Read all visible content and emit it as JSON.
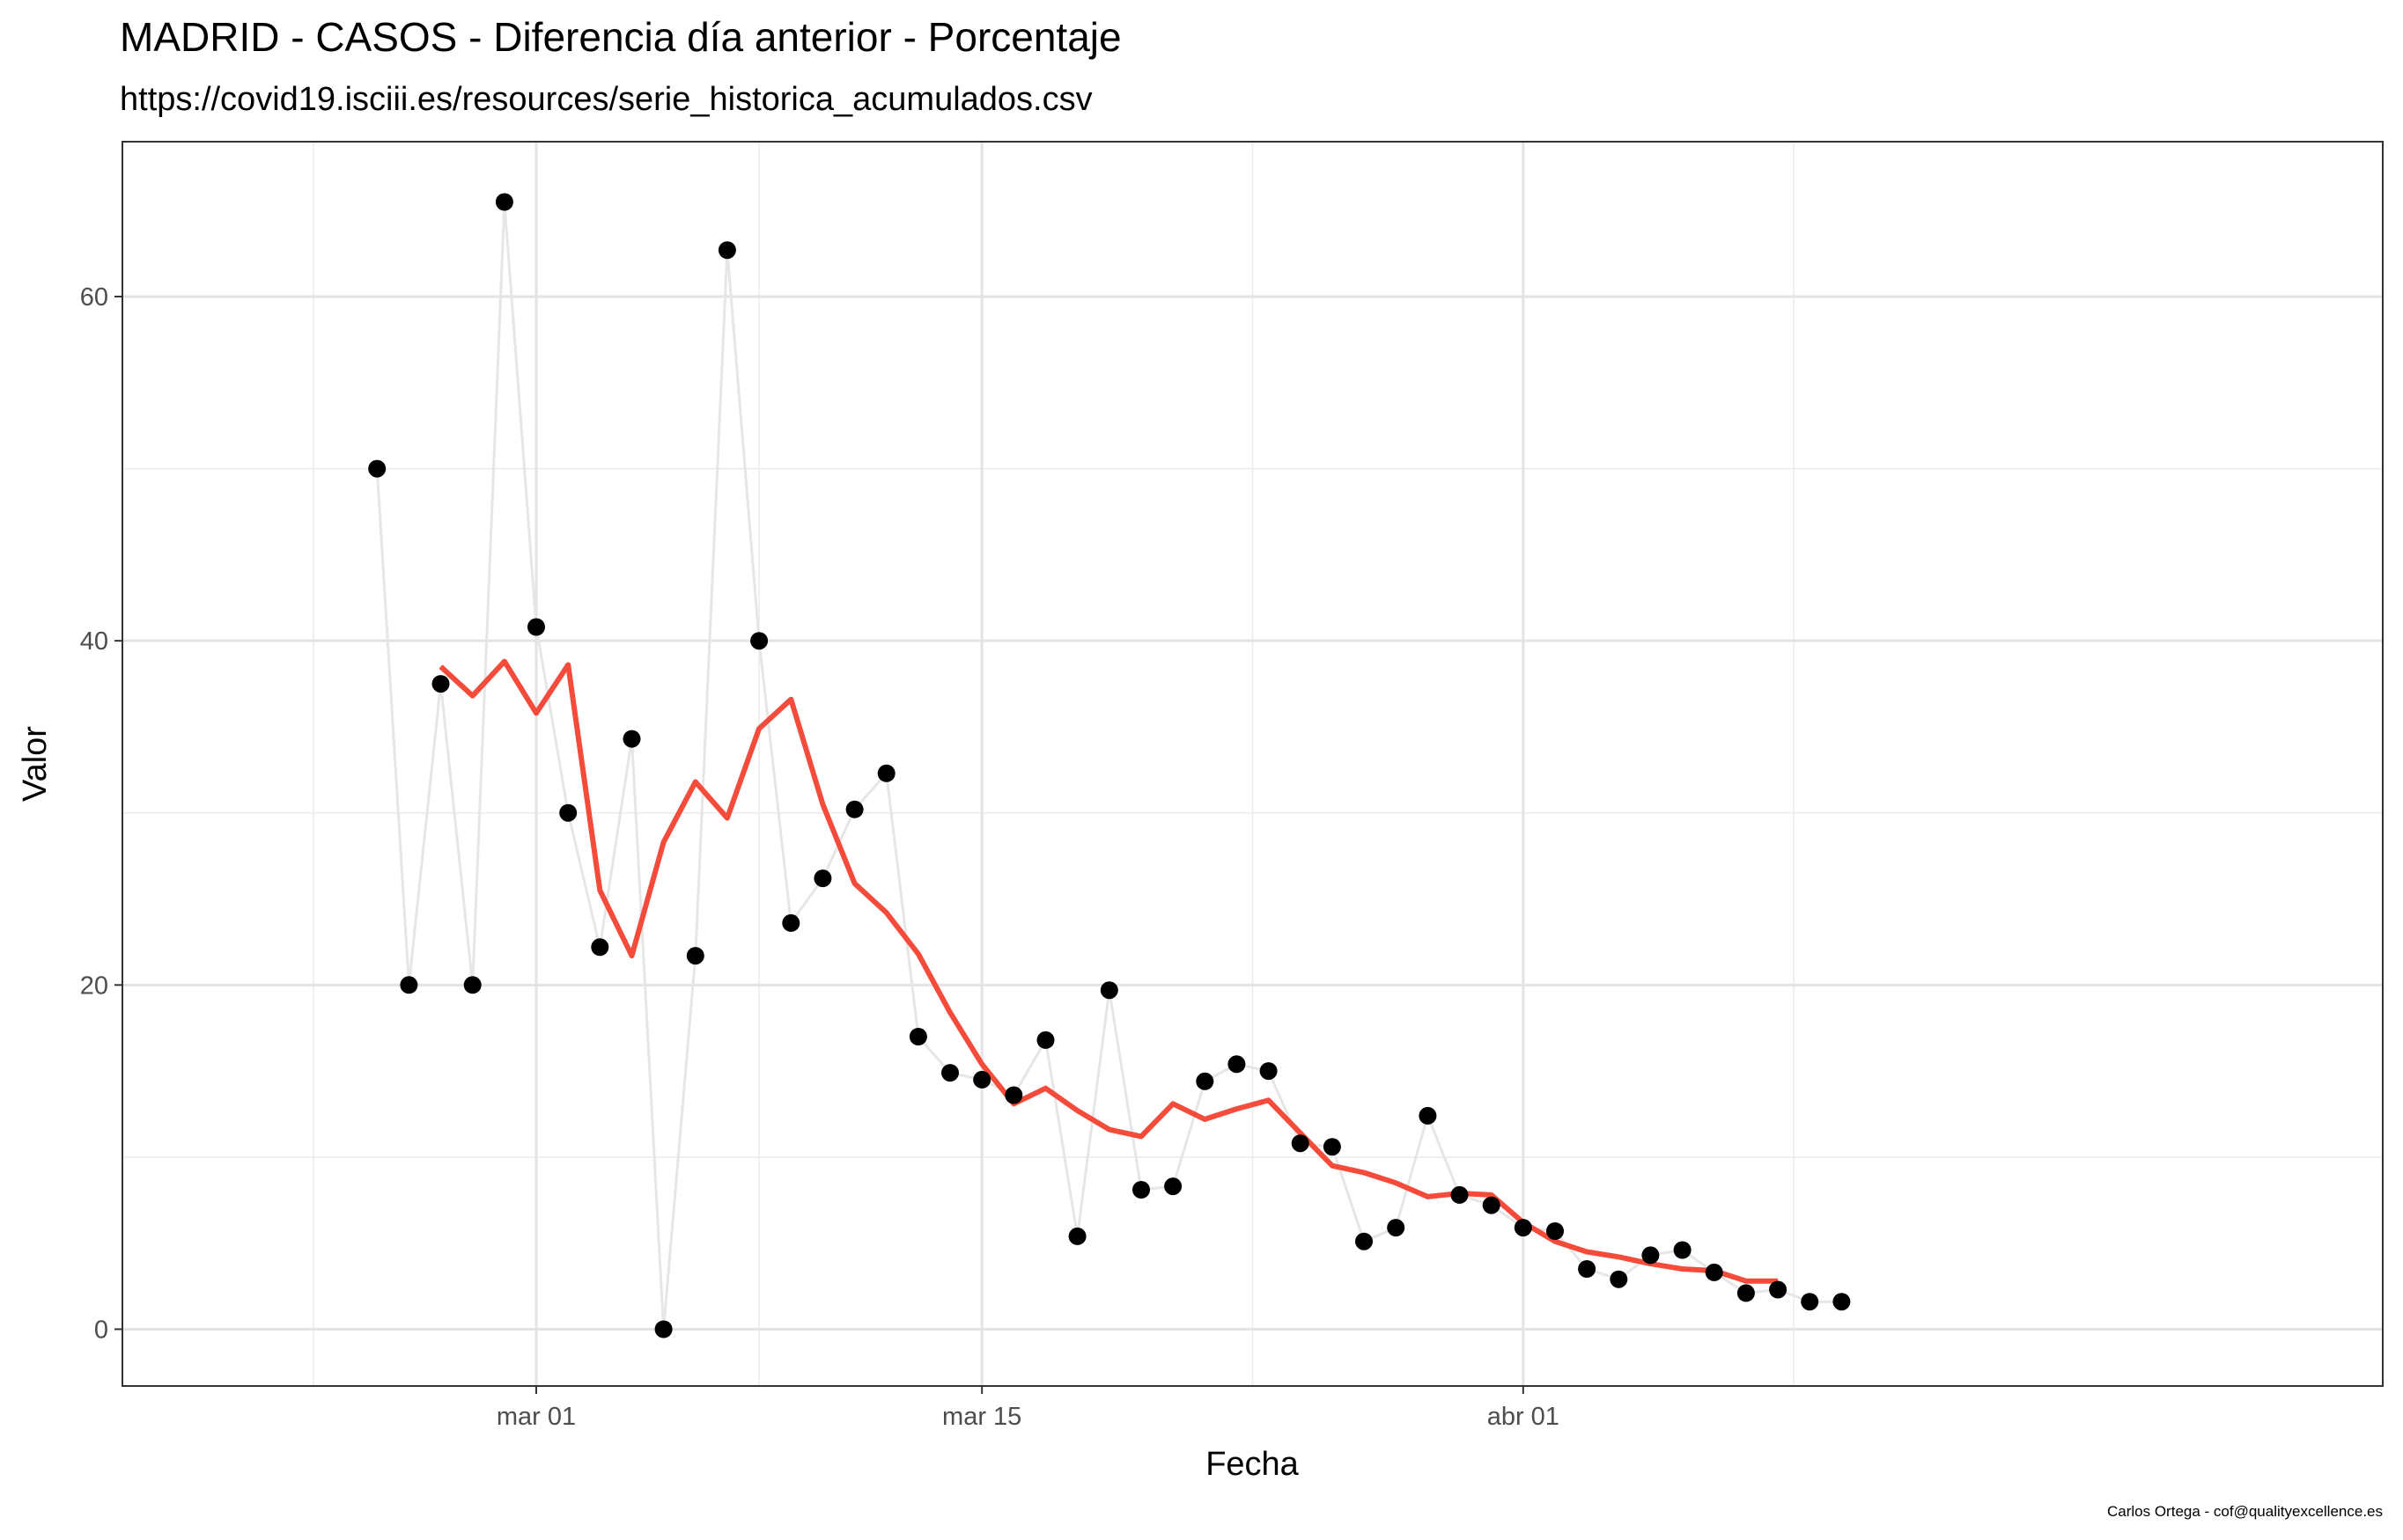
{
  "chart_data": {
    "type": "line",
    "title": "MADRID - CASOS - Diferencia día anterior - Porcentaje",
    "subtitle": "https://covid19.isciii.es/resources/serie_historica_acumulados.csv",
    "xlabel": "Fecha",
    "ylabel": "Valor",
    "caption": "Carlos Ortega - cof@qualityexcellence.es",
    "x_ticks": [
      {
        "label": "mar 01",
        "date": "2020-03-01"
      },
      {
        "label": "mar 15",
        "date": "2020-03-15"
      },
      {
        "label": "abr 01",
        "date": "2020-04-01"
      }
    ],
    "y_ticks": [
      0,
      20,
      40,
      60
    ],
    "xlim": [
      "2020-02-17",
      "2020-04-28"
    ],
    "ylim": [
      -3.3,
      69
    ],
    "grid": true,
    "colors": {
      "points": "#000000",
      "connector": "#e6e6e6",
      "smooth": "#f44b3a"
    },
    "series": [
      {
        "kind": "points",
        "x": [
          "2020-02-25",
          "2020-02-26",
          "2020-02-27",
          "2020-02-28",
          "2020-02-29",
          "2020-03-01",
          "2020-03-02",
          "2020-03-03",
          "2020-03-04",
          "2020-03-05",
          "2020-03-06",
          "2020-03-07",
          "2020-03-08",
          "2020-03-09",
          "2020-03-10",
          "2020-03-11",
          "2020-03-12",
          "2020-03-13",
          "2020-03-14",
          "2020-03-15",
          "2020-03-16",
          "2020-03-17",
          "2020-03-18",
          "2020-03-19",
          "2020-03-20",
          "2020-03-21",
          "2020-03-22",
          "2020-03-23",
          "2020-03-24",
          "2020-03-25",
          "2020-03-26",
          "2020-03-27",
          "2020-03-28",
          "2020-03-29",
          "2020-03-30",
          "2020-03-31",
          "2020-04-01",
          "2020-04-02",
          "2020-04-03",
          "2020-04-04",
          "2020-04-05",
          "2020-04-06",
          "2020-04-07",
          "2020-04-08",
          "2020-04-09",
          "2020-04-10",
          "2020-04-11"
        ],
        "y": [
          50,
          20,
          37.5,
          20,
          65.5,
          40.8,
          30,
          22.2,
          34.3,
          0,
          21.7,
          62.7,
          40,
          23.6,
          26.2,
          30.2,
          32.3,
          17,
          14.9,
          14.5,
          13.6,
          16.8,
          5.4,
          19.7,
          8.1,
          8.3,
          14.4,
          15.4,
          15,
          10.8,
          10.6,
          5.1,
          5.9,
          12.4,
          7.8,
          7.2,
          5.9,
          5.7,
          3.5,
          2.9,
          4.3,
          4.6,
          3.3,
          2.1,
          2.3,
          1.6,
          1.6
        ]
      },
      {
        "kind": "smooth",
        "x": [
          "2020-02-27",
          "2020-02-28",
          "2020-02-29",
          "2020-03-01",
          "2020-03-02",
          "2020-03-03",
          "2020-03-04",
          "2020-03-05",
          "2020-03-06",
          "2020-03-07",
          "2020-03-08",
          "2020-03-09",
          "2020-03-10",
          "2020-03-11",
          "2020-03-12",
          "2020-03-13",
          "2020-03-14",
          "2020-03-15",
          "2020-03-16",
          "2020-03-17",
          "2020-03-18",
          "2020-03-19",
          "2020-03-20",
          "2020-03-21",
          "2020-03-22",
          "2020-03-23",
          "2020-03-24",
          "2020-03-25",
          "2020-03-26",
          "2020-03-27",
          "2020-03-28",
          "2020-03-29",
          "2020-03-30",
          "2020-03-31",
          "2020-04-01",
          "2020-04-02",
          "2020-04-03",
          "2020-04-04",
          "2020-04-05",
          "2020-04-06",
          "2020-04-07",
          "2020-04-08",
          "2020-04-09"
        ],
        "y": [
          38.5,
          36.8,
          38.8,
          35.8,
          38.6,
          25.5,
          21.7,
          28.3,
          31.8,
          29.7,
          34.9,
          36.6,
          30.5,
          25.9,
          24.2,
          21.8,
          18.4,
          15.4,
          13.1,
          14,
          12.7,
          11.6,
          11.2,
          13.1,
          12.2,
          12.8,
          13.3,
          11.4,
          9.5,
          9.1,
          8.5,
          7.7,
          7.9,
          7.8,
          6.2,
          5.1,
          4.5,
          4.2,
          3.8,
          3.5,
          3.4,
          2.8,
          2.8
        ]
      }
    ]
  }
}
